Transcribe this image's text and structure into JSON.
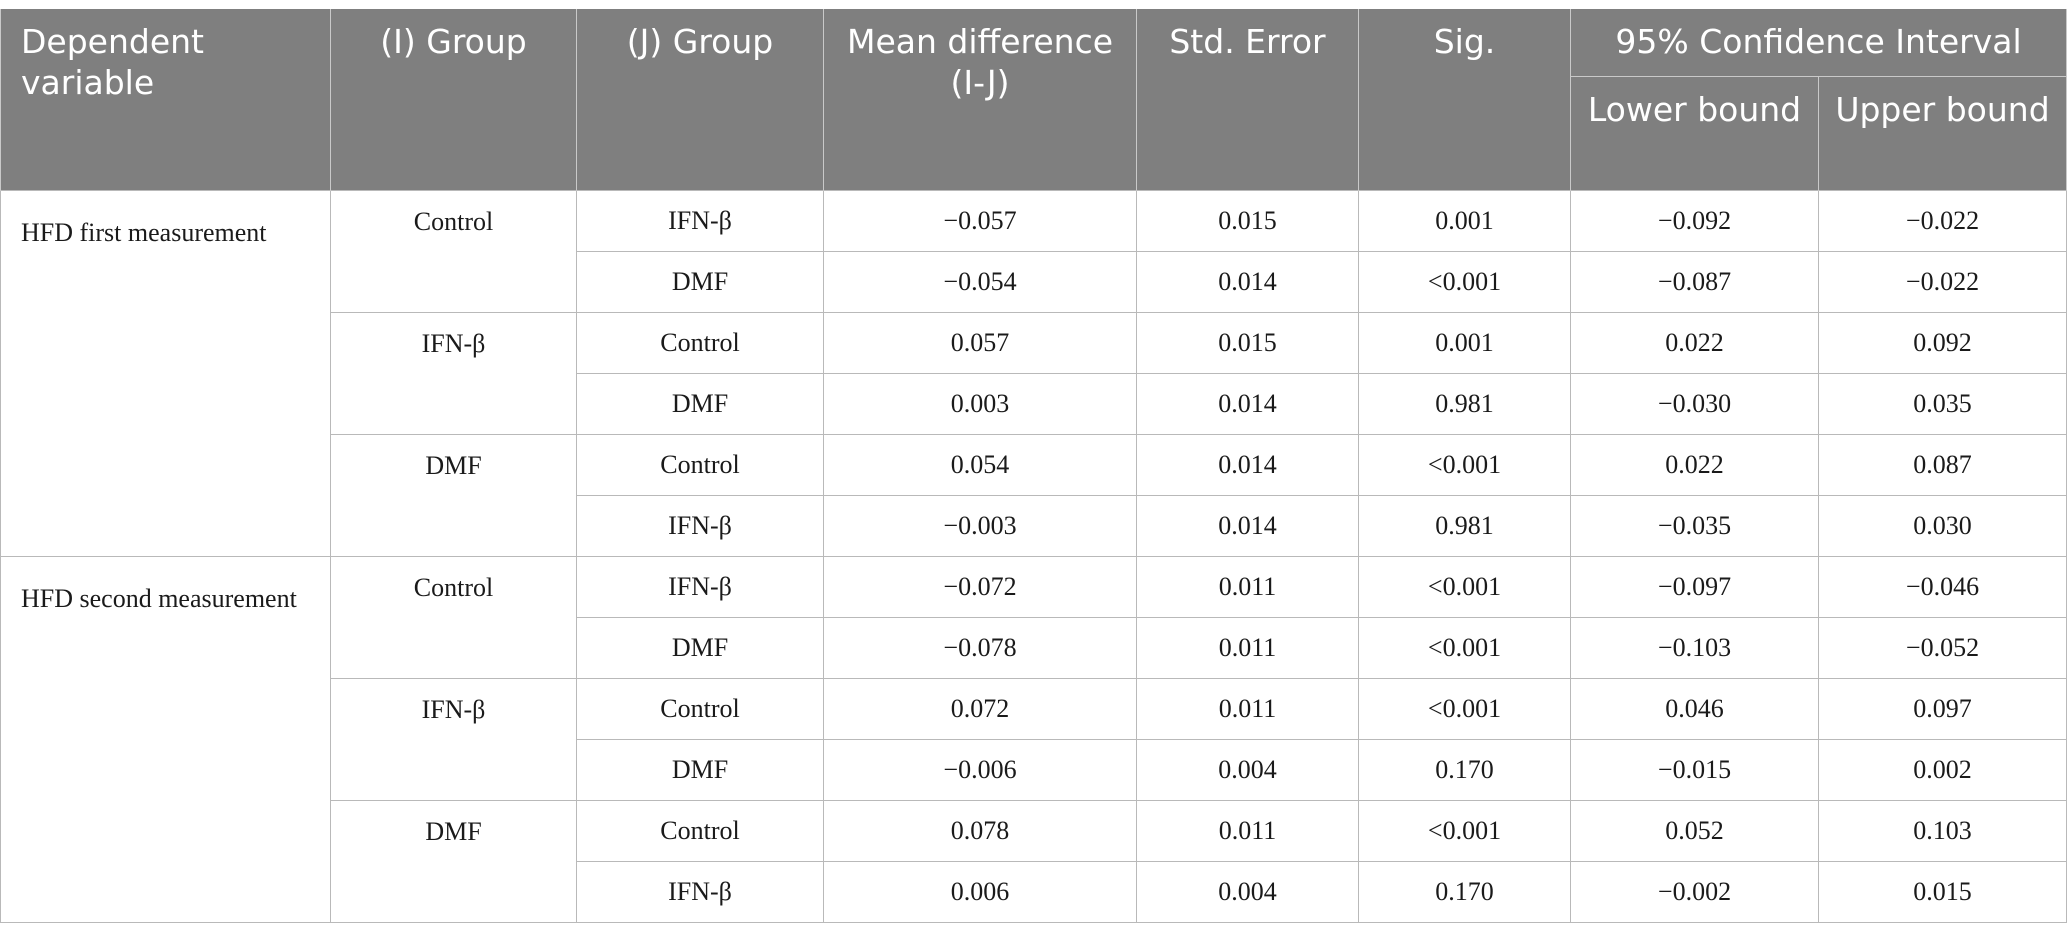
{
  "table": {
    "headers": {
      "dependent_variable": "Dependent variable",
      "i_group": "(I) Group",
      "j_group": "(J) Group",
      "mean_difference": "Mean difference (I-J)",
      "std_error": "Std. Error",
      "sig": "Sig.",
      "ci": "95% Confidence Interval",
      "lower_bound": "Lower bound",
      "upper_bound": "Upper bound"
    },
    "sections": [
      {
        "dependent_variable": "HFD first measurement",
        "groups": [
          {
            "i_group": "Control",
            "rows": [
              {
                "j_group": "IFN-β",
                "mean_diff": "−0.057",
                "std_error": "0.015",
                "sig": "0.001",
                "lower": "−0.092",
                "upper": "−0.022"
              },
              {
                "j_group": "DMF",
                "mean_diff": "−0.054",
                "std_error": "0.014",
                "sig": "<0.001",
                "lower": "−0.087",
                "upper": "−0.022"
              }
            ]
          },
          {
            "i_group": "IFN-β",
            "rows": [
              {
                "j_group": "Control",
                "mean_diff": "0.057",
                "std_error": "0.015",
                "sig": "0.001",
                "lower": "0.022",
                "upper": "0.092"
              },
              {
                "j_group": "DMF",
                "mean_diff": "0.003",
                "std_error": "0.014",
                "sig": "0.981",
                "lower": "−0.030",
                "upper": "0.035"
              }
            ]
          },
          {
            "i_group": "DMF",
            "rows": [
              {
                "j_group": "Control",
                "mean_diff": "0.054",
                "std_error": "0.014",
                "sig": "<0.001",
                "lower": "0.022",
                "upper": "0.087"
              },
              {
                "j_group": "IFN-β",
                "mean_diff": "−0.003",
                "std_error": "0.014",
                "sig": "0.981",
                "lower": "−0.035",
                "upper": "0.030"
              }
            ]
          }
        ]
      },
      {
        "dependent_variable": "HFD second measurement",
        "groups": [
          {
            "i_group": "Control",
            "rows": [
              {
                "j_group": "IFN-β",
                "mean_diff": "−0.072",
                "std_error": "0.011",
                "sig": "<0.001",
                "lower": "−0.097",
                "upper": "−0.046"
              },
              {
                "j_group": "DMF",
                "mean_diff": "−0.078",
                "std_error": "0.011",
                "sig": "<0.001",
                "lower": "−0.103",
                "upper": "−0.052"
              }
            ]
          },
          {
            "i_group": "IFN-β",
            "rows": [
              {
                "j_group": "Control",
                "mean_diff": "0.072",
                "std_error": "0.011",
                "sig": "<0.001",
                "lower": "0.046",
                "upper": "0.097"
              },
              {
                "j_group": "DMF",
                "mean_diff": "−0.006",
                "std_error": "0.004",
                "sig": "0.170",
                "lower": "−0.015",
                "upper": "0.002"
              }
            ]
          },
          {
            "i_group": "DMF",
            "rows": [
              {
                "j_group": "Control",
                "mean_diff": "0.078",
                "std_error": "0.011",
                "sig": "<0.001",
                "lower": "0.052",
                "upper": "0.103"
              },
              {
                "j_group": "IFN-β",
                "mean_diff": "0.006",
                "std_error": "0.004",
                "sig": "0.170",
                "lower": "−0.002",
                "upper": "0.015"
              }
            ]
          }
        ]
      }
    ]
  },
  "colors": {
    "header_background": "#7f7f7f",
    "header_text": "#ffffff",
    "grid_lines": "#b9b9b9"
  }
}
